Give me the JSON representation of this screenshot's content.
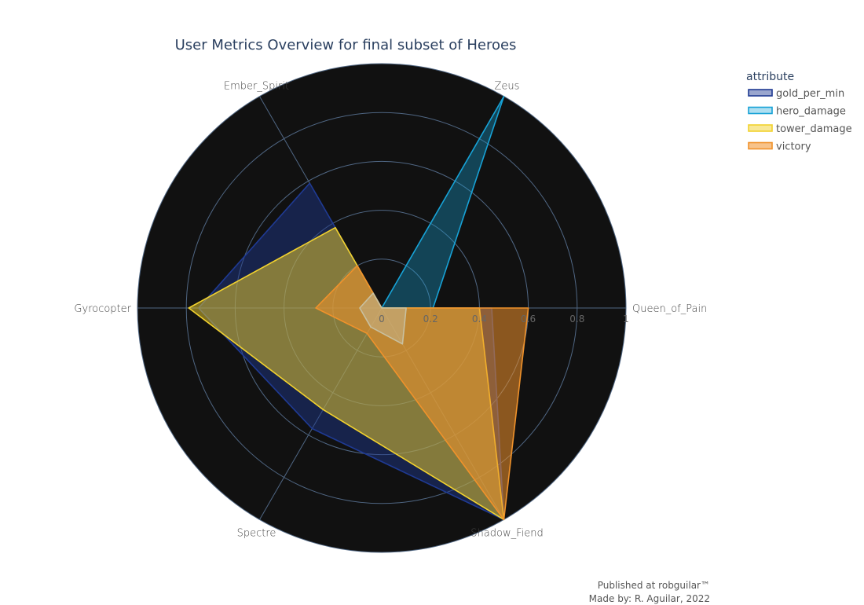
{
  "chart_data": {
    "type": "radar",
    "title": "User Metrics Overview for final subset of Heroes",
    "categories": [
      "Queen_of_Pain",
      "Zeus",
      "Ember_Spirit",
      "Gyrocopter",
      "Spectre",
      "Shadow_Fiend"
    ],
    "radial_ticks": [
      "0",
      "0.2",
      "0.4",
      "0.6",
      "0.8",
      "1"
    ],
    "radial_range": [
      0,
      1
    ],
    "legend_title": "attribute",
    "legend_position": "top-right",
    "background": "#111111",
    "grid_color": "#506784",
    "series": [
      {
        "name": "gold_per_min",
        "values": [
          0.45,
          0.0,
          0.59,
          0.75,
          0.57,
          1.0
        ],
        "color": "#1f3a93",
        "fill": "rgba(31,58,147,0.45)"
      },
      {
        "name": "hero_damage",
        "values": [
          0.21,
          1.0,
          0.0,
          0.0,
          0.0,
          0.0
        ],
        "color": "#17a2d6",
        "fill": "rgba(23,162,214,0.35)"
      },
      {
        "name": "tower_damage",
        "values": [
          0.4,
          0.0,
          0.38,
          0.79,
          0.48,
          1.0
        ],
        "color": "#f2d22e",
        "fill": "rgba(242,210,46,0.5)"
      },
      {
        "name": "victory",
        "values": [
          0.6,
          0.0,
          0.2,
          0.27,
          0.12,
          1.0
        ],
        "color": "#f0922b",
        "fill": "rgba(240,146,43,0.55)"
      },
      {
        "name": "",
        "values": [
          0.1,
          0.0,
          0.07,
          0.09,
          0.09,
          0.17
        ],
        "color": "#c8c0a0",
        "fill": "rgba(200,190,160,0.45)",
        "legend": false
      }
    ]
  },
  "credits": {
    "line1": "Published at robguilar™",
    "line2": "Made by:  R. Aguilar, 2022"
  }
}
